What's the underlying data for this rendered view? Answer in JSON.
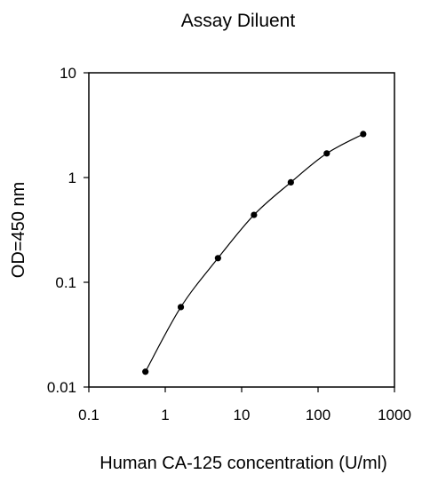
{
  "chart_data": {
    "type": "scatter",
    "title": "Assay Diluent",
    "xlabel": "Human CA-125 concentration (U/ml)",
    "ylabel": "OD=450 nm",
    "x_scale": "log",
    "y_scale": "log",
    "xlim": [
      0.1,
      1000
    ],
    "ylim": [
      0.01,
      10
    ],
    "x_ticks": [
      "0.1",
      "1",
      "10",
      "100",
      "1000"
    ],
    "y_ticks": [
      "0.01",
      "0.1",
      "1",
      "10"
    ],
    "grid": false,
    "legend": "none",
    "series": [
      {
        "x": [
          0.55,
          1.6,
          4.9,
          14.5,
          44,
          130,
          390
        ],
        "y": [
          0.014,
          0.058,
          0.17,
          0.44,
          0.9,
          1.7,
          2.6
        ],
        "marker": "circle",
        "line": "smooth"
      }
    ],
    "colors": {
      "axis": "#000000",
      "marker": "#000000",
      "line": "#000000",
      "background": "#ffffff"
    }
  }
}
